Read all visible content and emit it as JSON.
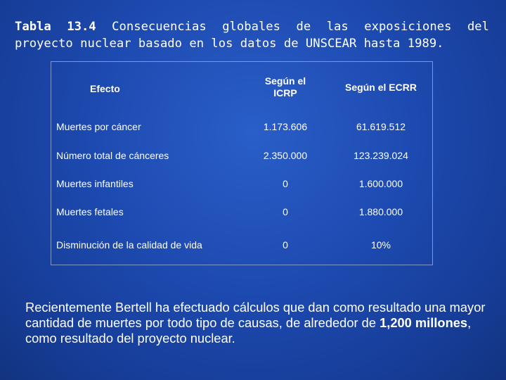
{
  "title": {
    "number": "Tabla 13.4",
    "text": "Consecuencias globales de las exposiciones del proyecto nuclear basado en los datos de UNSCEAR hasta 1989."
  },
  "table": {
    "headers": {
      "efecto": "Efecto",
      "icrp_line1": "Según el",
      "icrp_line2": "ICRP",
      "ecrr": "Según el ECRR"
    },
    "rows": [
      {
        "efecto": "Muertes por cáncer",
        "icrp": "1.173.606",
        "ecrr": "61.619.512"
      },
      {
        "efecto": "Número total de cánceres",
        "icrp": "2.350.000",
        "ecrr": "123.239.024"
      },
      {
        "efecto": "Muertes infantiles",
        "icrp": "0",
        "ecrr": "1.600.000"
      },
      {
        "efecto": "Muertes fetales",
        "icrp": "0",
        "ecrr": "1.880.000"
      },
      {
        "efecto": "Disminución de la calidad de vida",
        "icrp": "0",
        "ecrr": "10%"
      }
    ]
  },
  "paragraph": {
    "before": "Recientemente Bertell ha efectuado cálculos que dan como resultado una mayor cantidad de muertes por todo tipo de causas, de alrededor de ",
    "bold": "1,200 millones",
    "after": ", como resultado del proyecto nuclear."
  }
}
